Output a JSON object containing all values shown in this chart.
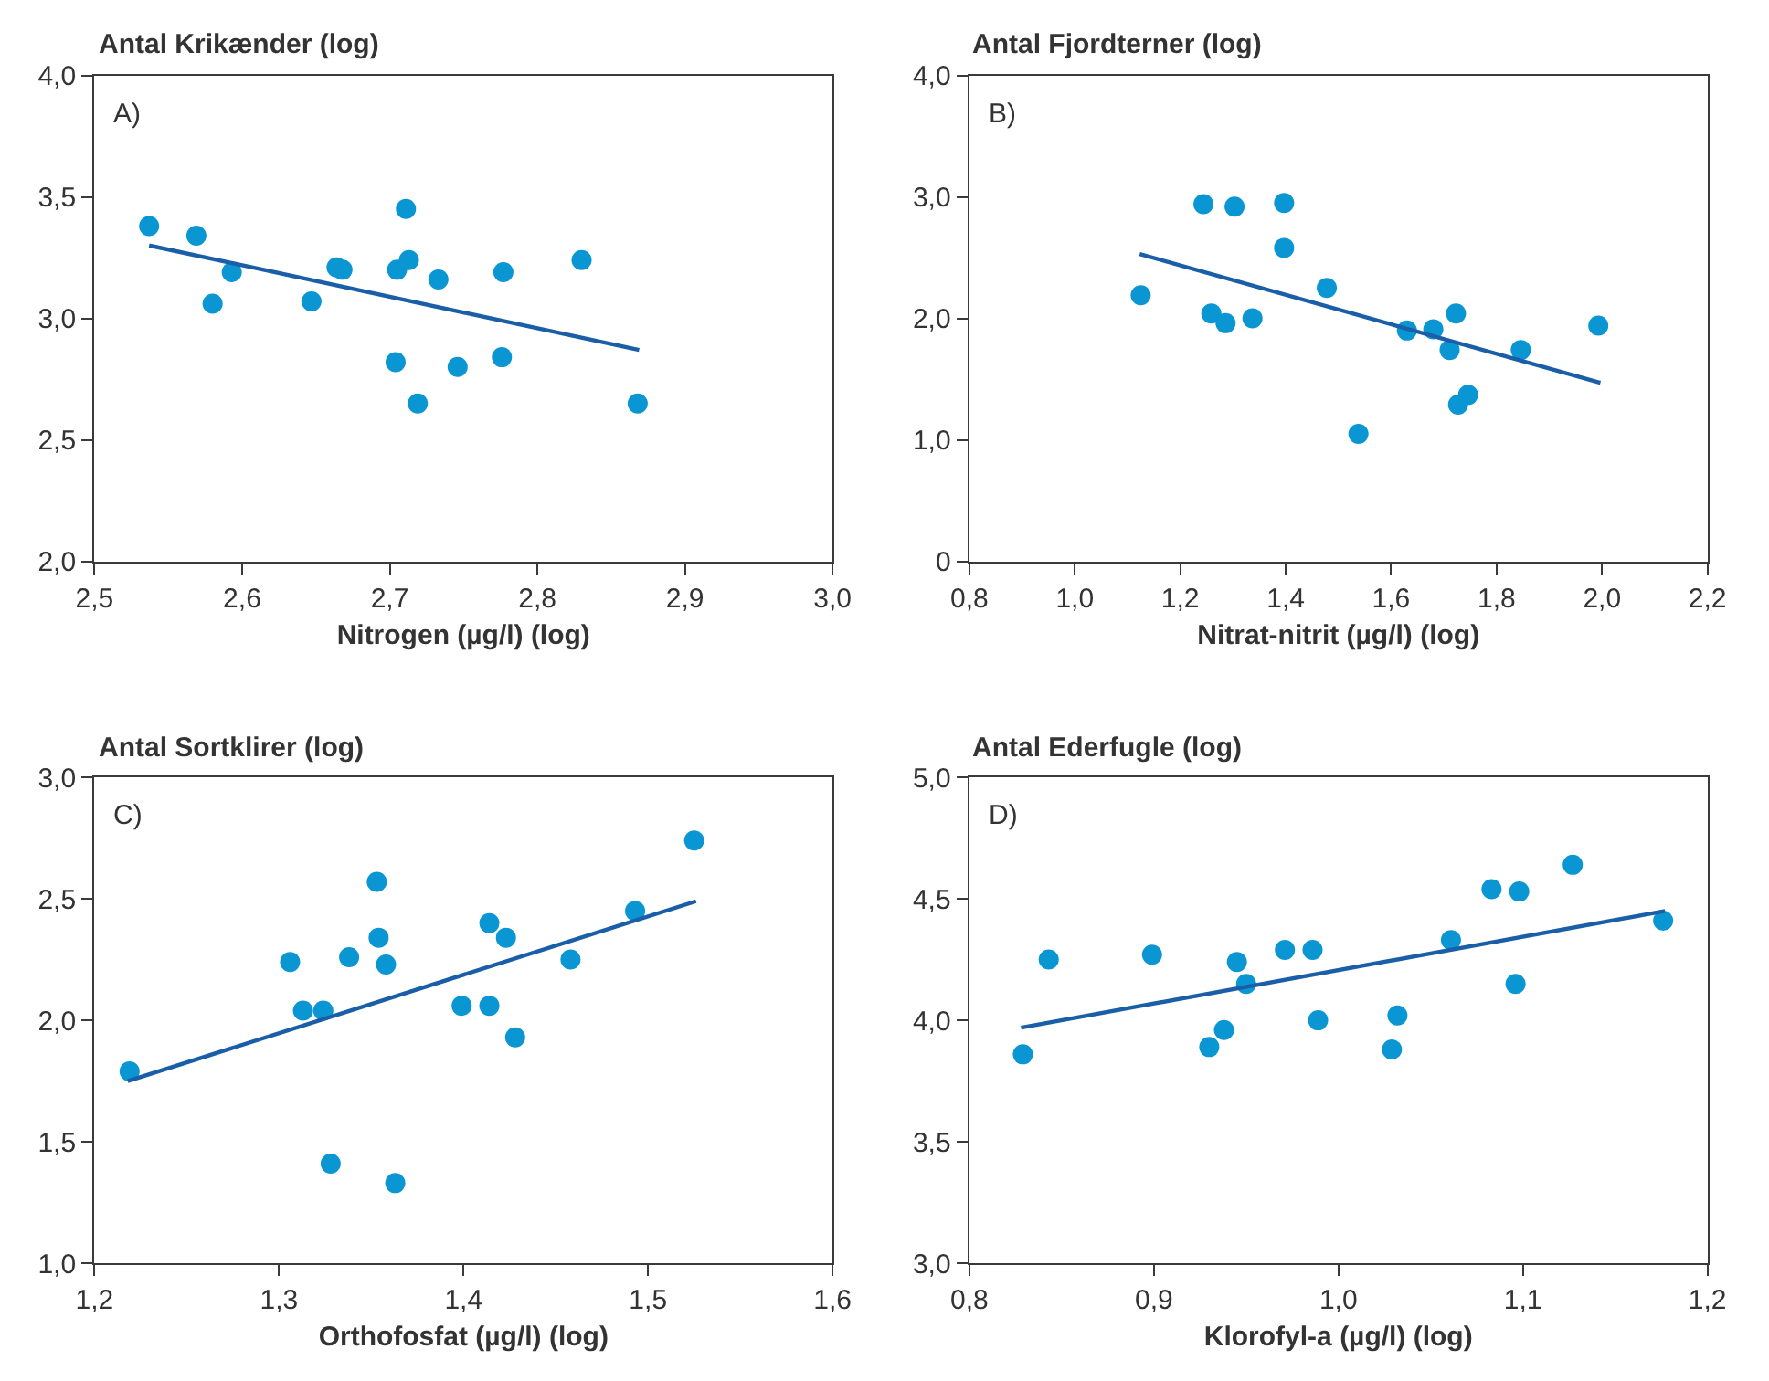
{
  "chart_data": [
    {
      "type": "scatter",
      "ylabel": "Antal Krikænder (log)",
      "xlabel": "Nitrogen (µg/l) (log)",
      "annotations": [
        "A)"
      ],
      "marker": "circle",
      "xlim": [
        2.5,
        3.0
      ],
      "xticks": [
        {
          "value": 2.5,
          "label": "2,5"
        },
        {
          "value": 2.6,
          "label": "2,6"
        },
        {
          "value": 2.7,
          "label": "2,7"
        },
        {
          "value": 2.8,
          "label": "2,8"
        },
        {
          "value": 2.9,
          "label": "2,9"
        },
        {
          "value": 3.0,
          "label": "3,0"
        }
      ],
      "ylim": [
        2.0,
        4.0
      ],
      "yticks": [
        {
          "value": 2.0,
          "label": "2,0"
        },
        {
          "value": 2.5,
          "label": "2,5"
        },
        {
          "value": 3.0,
          "label": "3,0"
        },
        {
          "value": 3.5,
          "label": "3,5"
        },
        {
          "value": 4.0,
          "label": "4,0"
        }
      ],
      "series": [
        {
          "color": "#0a96d2",
          "x": [
            2.537,
            2.569,
            2.58,
            2.593,
            2.647,
            2.664,
            2.668,
            2.711,
            2.705,
            2.713,
            2.733,
            2.777,
            2.83,
            2.704,
            2.746,
            2.776,
            2.719,
            2.868
          ],
          "values": [
            3.38,
            3.34,
            3.06,
            3.19,
            3.07,
            3.21,
            3.2,
            3.45,
            3.2,
            3.24,
            3.16,
            3.19,
            3.24,
            2.82,
            2.8,
            2.84,
            2.65,
            2.65
          ]
        },
        {
          "type": "line",
          "color": "#1a5ea8",
          "marker": "none",
          "line_style": "solid",
          "x": [
            2.537,
            2.869
          ],
          "values": [
            3.3,
            2.87
          ]
        }
      ]
    },
    {
      "type": "scatter",
      "ylabel": "Antal Fjordterner (log)",
      "xlabel": "Nitrat-nitrit (µg/l) (log)",
      "annotations": [
        "B)"
      ],
      "marker": "circle",
      "xlim": [
        0.8,
        2.2
      ],
      "xticks": [
        {
          "value": 0.8,
          "label": "0,8"
        },
        {
          "value": 1.0,
          "label": "1,0"
        },
        {
          "value": 1.2,
          "label": "1,2"
        },
        {
          "value": 1.4,
          "label": "1,4"
        },
        {
          "value": 1.6,
          "label": "1,6"
        },
        {
          "value": 1.8,
          "label": "1,8"
        },
        {
          "value": 2.0,
          "label": "2,0"
        },
        {
          "value": 2.2,
          "label": "2,2"
        }
      ],
      "ylim": [
        0,
        4.0
      ],
      "yticks": [
        0,
        {
          "value": 1.0,
          "label": "1,0"
        },
        {
          "value": 2.0,
          "label": "2,0"
        },
        {
          "value": 3.0,
          "label": "3,0"
        },
        {
          "value": 4.0,
          "label": "4,0"
        }
      ],
      "series": [
        {
          "color": "#0a96d2",
          "x": [
            1.125,
            1.244,
            1.303,
            1.397,
            1.397,
            1.478,
            1.259,
            1.286,
            1.337,
            1.63,
            1.68,
            1.723,
            1.711,
            1.846,
            1.993,
            1.746,
            1.727,
            1.538
          ],
          "values": [
            2.19,
            2.94,
            2.92,
            2.95,
            2.58,
            2.25,
            2.04,
            1.96,
            2.0,
            1.9,
            1.91,
            2.04,
            1.74,
            1.74,
            1.94,
            1.37,
            1.29,
            1.05
          ]
        },
        {
          "type": "line",
          "color": "#1a5ea8",
          "marker": "none",
          "line_style": "solid",
          "x": [
            1.123,
            1.997
          ],
          "values": [
            2.53,
            1.47
          ]
        }
      ]
    },
    {
      "type": "scatter",
      "ylabel": "Antal Sortklirer (log)",
      "xlabel": "Orthofosfat (µg/l) (log)",
      "annotations": [
        "C)"
      ],
      "marker": "circle",
      "xlim": [
        1.2,
        1.6
      ],
      "xticks": [
        {
          "value": 1.2,
          "label": "1,2"
        },
        {
          "value": 1.3,
          "label": "1,3"
        },
        {
          "value": 1.4,
          "label": "1,4"
        },
        {
          "value": 1.5,
          "label": "1,5"
        },
        {
          "value": 1.6,
          "label": "1,6"
        }
      ],
      "ylim": [
        1.0,
        3.0
      ],
      "yticks": [
        {
          "value": 1.0,
          "label": "1,0"
        },
        {
          "value": 1.5,
          "label": "1,5"
        },
        {
          "value": 2.0,
          "label": "2,0"
        },
        {
          "value": 2.5,
          "label": "2,5"
        },
        {
          "value": 3.0,
          "label": "3,0"
        }
      ],
      "series": [
        {
          "color": "#0a96d2",
          "x": [
            1.219,
            1.306,
            1.313,
            1.324,
            1.338,
            1.353,
            1.354,
            1.358,
            1.328,
            1.363,
            1.399,
            1.414,
            1.414,
            1.423,
            1.428,
            1.458,
            1.493,
            1.525
          ],
          "values": [
            1.79,
            2.24,
            2.04,
            2.04,
            2.26,
            2.57,
            2.34,
            2.23,
            1.41,
            1.33,
            2.06,
            2.4,
            2.06,
            2.34,
            1.93,
            2.25,
            2.45,
            2.74
          ]
        },
        {
          "type": "line",
          "color": "#1a5ea8",
          "marker": "none",
          "line_style": "solid",
          "x": [
            1.218,
            1.526
          ],
          "values": [
            1.75,
            2.49
          ]
        }
      ]
    },
    {
      "type": "scatter",
      "ylabel": "Antal Ederfugle (log)",
      "xlabel": "Klorofyl-a (µg/l) (log)",
      "annotations": [
        "D)"
      ],
      "marker": "circle",
      "xlim": [
        0.8,
        1.2
      ],
      "xticks": [
        {
          "value": 0.8,
          "label": "0,8"
        },
        {
          "value": 0.9,
          "label": "0,9"
        },
        {
          "value": 1.0,
          "label": "1,0"
        },
        {
          "value": 1.1,
          "label": "1,1"
        },
        {
          "value": 1.2,
          "label": "1,2"
        }
      ],
      "ylim": [
        3.0,
        5.0
      ],
      "yticks": [
        {
          "value": 3.0,
          "label": "3,0"
        },
        {
          "value": 3.5,
          "label": "3,5"
        },
        {
          "value": 4.0,
          "label": "4,0"
        },
        {
          "value": 4.5,
          "label": "4,5"
        },
        {
          "value": 5.0,
          "label": "5,0"
        }
      ],
      "series": [
        {
          "color": "#0a96d2",
          "x": [
            0.829,
            0.843,
            0.899,
            0.93,
            0.938,
            0.945,
            0.95,
            0.971,
            0.986,
            0.989,
            1.029,
            1.032,
            1.061,
            1.083,
            1.098,
            1.096,
            1.127,
            1.176
          ],
          "values": [
            3.86,
            4.25,
            4.27,
            3.89,
            3.96,
            4.24,
            4.15,
            4.29,
            4.29,
            4.0,
            3.88,
            4.02,
            4.33,
            4.54,
            4.53,
            4.15,
            4.64,
            4.41
          ]
        },
        {
          "type": "line",
          "color": "#1a5ea8",
          "marker": "none",
          "line_style": "solid",
          "x": [
            0.828,
            1.177
          ],
          "values": [
            3.97,
            4.45
          ]
        }
      ]
    }
  ]
}
